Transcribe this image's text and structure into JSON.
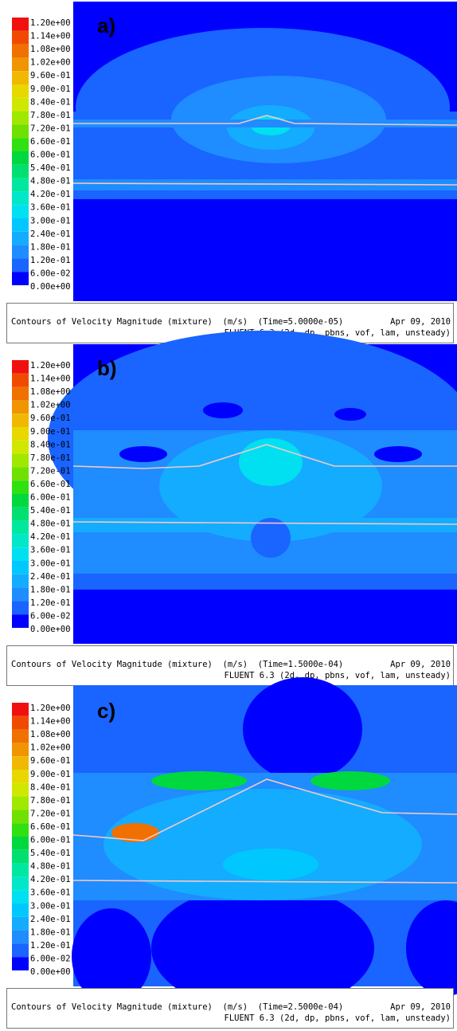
{
  "colorbar": {
    "labels": [
      "1.20e+00",
      "1.14e+00",
      "1.08e+00",
      "1.02e+00",
      "9.60e-01",
      "9.00e-01",
      "8.40e-01",
      "7.80e-01",
      "7.20e-01",
      "6.60e-01",
      "6.00e-01",
      "5.40e-01",
      "4.80e-01",
      "4.20e-01",
      "3.60e-01",
      "3.00e-01",
      "2.40e-01",
      "1.80e-01",
      "1.20e-01",
      "6.00e-02",
      "0.00e+00"
    ],
    "colors": [
      "#f01010",
      "#f04a00",
      "#f07000",
      "#f09400",
      "#f0b800",
      "#e8d800",
      "#d0e800",
      "#a0e800",
      "#70e000",
      "#30e010",
      "#00d840",
      "#00e070",
      "#00e8a0",
      "#00e8c8",
      "#00e0f0",
      "#00c8ff",
      "#14acff",
      "#1f8cff",
      "#1a64ff",
      "#0000ff"
    ]
  },
  "panels": [
    {
      "label": "a)",
      "caption": {
        "quantity": "Contours of Velocity Magnitude (mixture)  (m/s)  (Time=5.0000e-05)",
        "date": "Apr 09, 2010",
        "solver": "FLUENT 6.3 (2d, dp, pbns, vof, lam, unsteady)"
      }
    },
    {
      "label": "b)",
      "caption": {
        "quantity": "Contours of Velocity Magnitude (mixture)  (m/s)  (Time=1.5000e-04)",
        "date": "Apr 09, 2010",
        "solver": "FLUENT 6.3 (2d, dp, pbns, vof, lam, unsteady)"
      }
    },
    {
      "label": "c)",
      "caption": {
        "quantity": "Contours of Velocity Magnitude (mixture)  (m/s)  (Time=2.5000e-04)",
        "date": "Apr 09, 2010",
        "solver": "FLUENT 6.3 (2d, dp, pbns, vof, lam, unsteady)"
      }
    }
  ]
}
